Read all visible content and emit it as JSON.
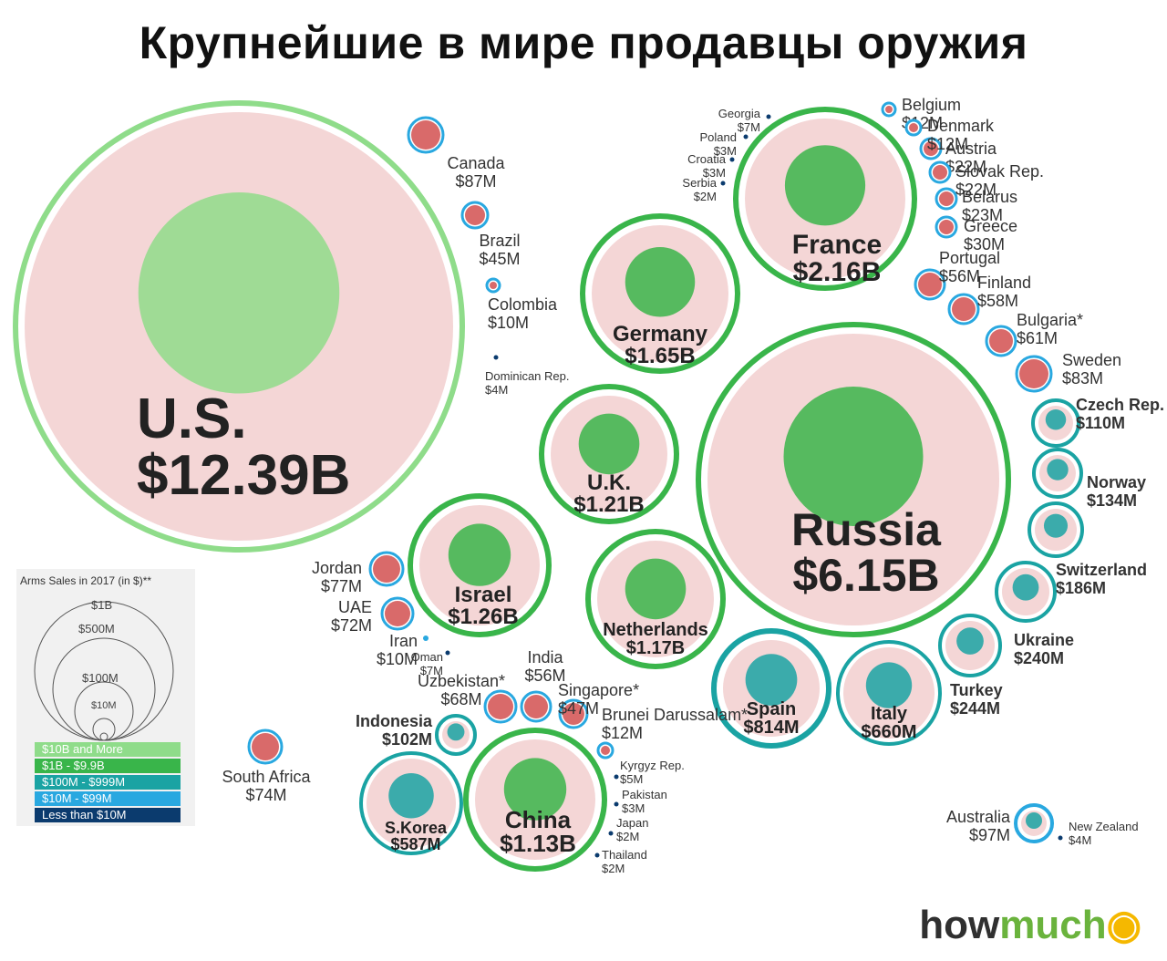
{
  "title": "Крупнейшие в мире продавцы оружия",
  "brand": {
    "part1": "how",
    "part2": "much",
    "part3": "♾"
  },
  "legend": {
    "title": "Arms Sales in 2017 (in $)**",
    "sizes": [
      "$1B",
      "$500M",
      "$100M",
      "$10M"
    ],
    "tiers": [
      {
        "label": "$10B and More",
        "color": "#8fdc8a"
      },
      {
        "label": "$1B - $9.9B",
        "color": "#39b54a"
      },
      {
        "label": "$100M - $999M",
        "color": "#1aa3a3"
      },
      {
        "label": "$10M - $99M",
        "color": "#29a8e0"
      },
      {
        "label": "Less than $10M",
        "color": "#0b3b6e"
      }
    ]
  },
  "chart_data": {
    "type": "bubble",
    "title": "Крупнейшие в мире продавцы оружия",
    "unit": "USD",
    "countries": [
      {
        "name": "U.S.",
        "value_label": "$12.39B",
        "value": 12390000000,
        "tier": 0
      },
      {
        "name": "Russia",
        "value_label": "$6.15B",
        "value": 6150000000,
        "tier": 1
      },
      {
        "name": "France",
        "value_label": "$2.16B",
        "value": 2160000000,
        "tier": 1
      },
      {
        "name": "Germany",
        "value_label": "$1.65B",
        "value": 1650000000,
        "tier": 1
      },
      {
        "name": "Israel",
        "value_label": "$1.26B",
        "value": 1260000000,
        "tier": 1
      },
      {
        "name": "U.K.",
        "value_label": "$1.21B",
        "value": 1210000000,
        "tier": 1
      },
      {
        "name": "Netherlands",
        "value_label": "$1.17B",
        "value": 1170000000,
        "tier": 1
      },
      {
        "name": "China",
        "value_label": "$1.13B",
        "value": 1130000000,
        "tier": 1
      },
      {
        "name": "Spain",
        "value_label": "$814M",
        "value": 814000000,
        "tier": 2
      },
      {
        "name": "Italy",
        "value_label": "$660M",
        "value": 660000000,
        "tier": 2
      },
      {
        "name": "S.Korea",
        "value_label": "$587M",
        "value": 587000000,
        "tier": 2
      },
      {
        "name": "Turkey",
        "value_label": "$244M",
        "value": 244000000,
        "tier": 2
      },
      {
        "name": "Ukraine",
        "value_label": "$240M",
        "value": 240000000,
        "tier": 2
      },
      {
        "name": "Switzerland",
        "value_label": "$186M",
        "value": 186000000,
        "tier": 2
      },
      {
        "name": "Norway",
        "value_label": "$134M",
        "value": 134000000,
        "tier": 2
      },
      {
        "name": "Czech Rep.",
        "value_label": "$110M",
        "value": 110000000,
        "tier": 2
      },
      {
        "name": "Indonesia",
        "value_label": "$102M",
        "value": 102000000,
        "tier": 2
      },
      {
        "name": "Australia",
        "value_label": "$97M",
        "value": 97000000,
        "tier": 3
      },
      {
        "name": "Canada",
        "value_label": "$87M",
        "value": 87000000,
        "tier": 3
      },
      {
        "name": "Sweden",
        "value_label": "$83M",
        "value": 83000000,
        "tier": 3
      },
      {
        "name": "Jordan",
        "value_label": "$77M",
        "value": 77000000,
        "tier": 3
      },
      {
        "name": "South Africa",
        "value_label": "$74M",
        "value": 74000000,
        "tier": 3
      },
      {
        "name": "UAE",
        "value_label": "$72M",
        "value": 72000000,
        "tier": 3
      },
      {
        "name": "Uzbekistan*",
        "value_label": "$68M",
        "value": 68000000,
        "tier": 3
      },
      {
        "name": "Bulgaria*",
        "value_label": "$61M",
        "value": 61000000,
        "tier": 3
      },
      {
        "name": "Finland",
        "value_label": "$58M",
        "value": 58000000,
        "tier": 3
      },
      {
        "name": "India",
        "value_label": "$56M",
        "value": 56000000,
        "tier": 3
      },
      {
        "name": "Portugal",
        "value_label": "$56M",
        "value": 56000000,
        "tier": 3
      },
      {
        "name": "Singapore*",
        "value_label": "$47M",
        "value": 47000000,
        "tier": 3
      },
      {
        "name": "Brazil",
        "value_label": "$45M",
        "value": 45000000,
        "tier": 3
      },
      {
        "name": "Greece",
        "value_label": "$30M",
        "value": 30000000,
        "tier": 3
      },
      {
        "name": "Belarus",
        "value_label": "$23M",
        "value": 23000000,
        "tier": 3
      },
      {
        "name": "Austria",
        "value_label": "$22M",
        "value": 22000000,
        "tier": 3
      },
      {
        "name": "Slovak Rep.",
        "value_label": "$22M",
        "value": 22000000,
        "tier": 3
      },
      {
        "name": "Belgium",
        "value_label": "$12M",
        "value": 12000000,
        "tier": 3
      },
      {
        "name": "Denmark",
        "value_label": "$12M",
        "value": 12000000,
        "tier": 3
      },
      {
        "name": "Brunei Darussalam*",
        "value_label": "$12M",
        "value": 12000000,
        "tier": 3
      },
      {
        "name": "Colombia",
        "value_label": "$10M",
        "value": 10000000,
        "tier": 3
      },
      {
        "name": "Iran",
        "value_label": "$10M",
        "value": 10000000,
        "tier": 3
      },
      {
        "name": "Georgia",
        "value_label": "$7M",
        "value": 7000000,
        "tier": 4
      },
      {
        "name": "Oman",
        "value_label": "$7M",
        "value": 7000000,
        "tier": 4
      },
      {
        "name": "Kyrgyz Rep.",
        "value_label": "$5M",
        "value": 5000000,
        "tier": 4
      },
      {
        "name": "Dominican Rep.",
        "value_label": "$4M",
        "value": 4000000,
        "tier": 4
      },
      {
        "name": "New Zealand",
        "value_label": "$4M",
        "value": 4000000,
        "tier": 4
      },
      {
        "name": "Poland",
        "value_label": "$3M",
        "value": 3000000,
        "tier": 4
      },
      {
        "name": "Croatia",
        "value_label": "$3M",
        "value": 3000000,
        "tier": 4
      },
      {
        "name": "Pakistan",
        "value_label": "$3M",
        "value": 3000000,
        "tier": 4
      },
      {
        "name": "Serbia",
        "value_label": "$2M",
        "value": 2000000,
        "tier": 4
      },
      {
        "name": "Japan",
        "value_label": "$2M",
        "value": 2000000,
        "tier": 4
      },
      {
        "name": "Thailand",
        "value_label": "$2M",
        "value": 2000000,
        "tier": 4
      }
    ]
  }
}
